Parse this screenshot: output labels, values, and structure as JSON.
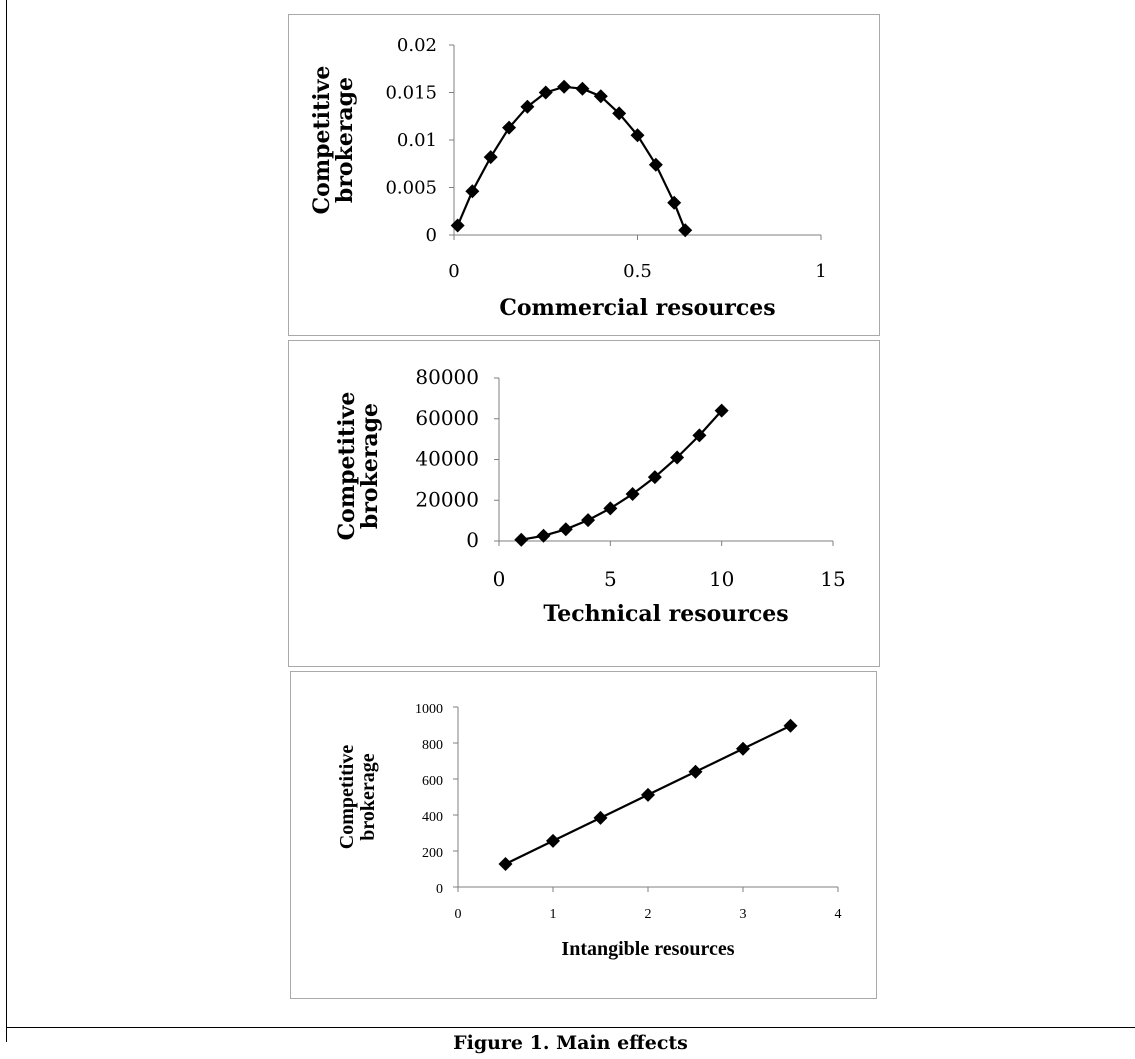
{
  "figure": {
    "caption": "Figure 1. Main effects"
  },
  "colors": {
    "line": "#000000",
    "axis": "#7f7f7f",
    "panel_border": "#a9a9a9"
  },
  "chart_data": [
    {
      "type": "line",
      "marker": "diamond",
      "xlabel": "Commercial resources",
      "ylabel": "Competitive brokerage",
      "xlim": [
        0,
        1
      ],
      "ylim": [
        0,
        0.02
      ],
      "x_ticks": [
        "0",
        "0.5",
        "1"
      ],
      "x_tick_values": [
        0,
        0.5,
        1
      ],
      "y_ticks": [
        "0",
        "0.005",
        "0.01",
        "0.015",
        "0.02"
      ],
      "y_tick_values": [
        0,
        0.005,
        0.01,
        0.015,
        0.02
      ],
      "grid": false,
      "legend": "none",
      "series": [
        {
          "x": [
            0.01,
            0.05,
            0.1,
            0.15,
            0.2,
            0.25,
            0.3,
            0.35,
            0.4,
            0.45,
            0.5,
            0.55,
            0.6,
            0.63
          ],
          "y": [
            0.001,
            0.0046,
            0.0082,
            0.0113,
            0.0135,
            0.015,
            0.0156,
            0.0154,
            0.0146,
            0.0128,
            0.0105,
            0.0074,
            0.0034,
            0.0005
          ]
        }
      ]
    },
    {
      "type": "line",
      "marker": "diamond",
      "xlabel": "Technical resources",
      "ylabel": "Competitive brokerage",
      "xlim": [
        0,
        15
      ],
      "ylim": [
        0,
        80000
      ],
      "x_ticks": [
        "0",
        "5",
        "10",
        "15"
      ],
      "x_tick_values": [
        0,
        5,
        10,
        15
      ],
      "y_ticks": [
        "0",
        "20000",
        "40000",
        "60000",
        "80000"
      ],
      "y_tick_values": [
        0,
        20000,
        40000,
        60000,
        80000
      ],
      "grid": false,
      "legend": "none",
      "series": [
        {
          "x": [
            1,
            2,
            3,
            4,
            5,
            6,
            7,
            8,
            9,
            10
          ],
          "y": [
            640,
            2560,
            5760,
            10240,
            16000,
            23040,
            31360,
            40960,
            51840,
            64000
          ]
        }
      ]
    },
    {
      "type": "line",
      "marker": "diamond",
      "xlabel": "Intangible resources",
      "ylabel": "Competitive brokerage",
      "xlim": [
        0,
        4
      ],
      "ylim": [
        0,
        1000
      ],
      "x_ticks": [
        "0",
        "1",
        "2",
        "3",
        "4"
      ],
      "x_tick_values": [
        0,
        1,
        2,
        3,
        4
      ],
      "y_ticks": [
        "0",
        "200",
        "400",
        "600",
        "800",
        "1000"
      ],
      "y_tick_values": [
        0,
        200,
        400,
        600,
        800,
        1000
      ],
      "grid": false,
      "legend": "none",
      "series": [
        {
          "x": [
            0.5,
            1,
            1.5,
            2,
            2.5,
            3,
            3.5
          ],
          "y": [
            128,
            256,
            384,
            512,
            640,
            768,
            896
          ]
        }
      ]
    }
  ]
}
